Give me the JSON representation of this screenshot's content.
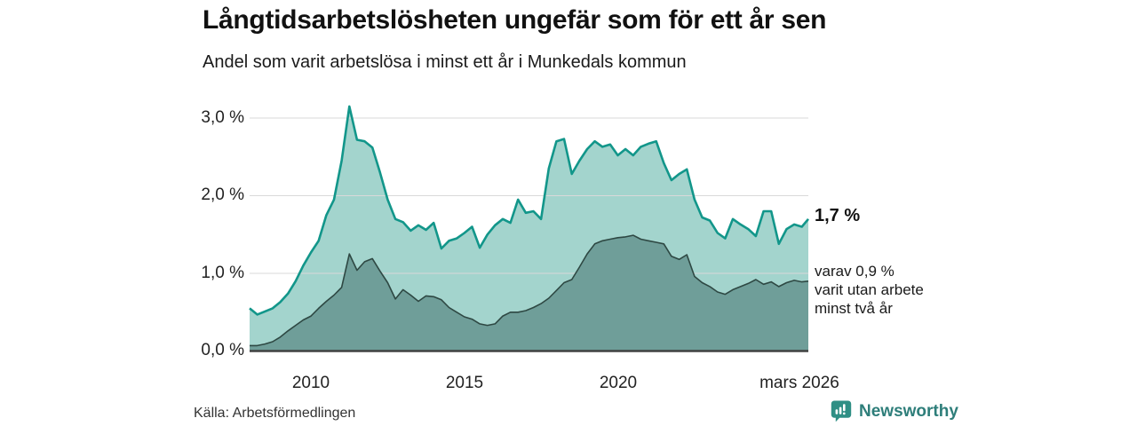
{
  "header": {
    "title": "Långtidsarbetslösheten ungefär som för ett år sen",
    "subtitle": "Andel som varit arbetslösa i minst ett år i Munkedals kommun"
  },
  "annotations": {
    "total_end_label": "1,7 %",
    "subset_end_label_lines": [
      "varav 0,9 %",
      "varit utan arbete",
      "minst två år"
    ]
  },
  "footer": {
    "source": "Källa: Arbetsförmedlingen",
    "brand": "Newsworthy",
    "brand_icon": "newsworthy-bubble-chart-icon"
  },
  "colors": {
    "background": "#ffffff",
    "grid": "#d9d9d9",
    "axis": "#414141",
    "text": "#1a1a1a",
    "tick_text": "#222222",
    "brand_teal": "#2e7e7a",
    "series_total_fill": "#a3d4cd",
    "series_total_stroke": "#12968a",
    "series_subset_fill": "#6f9e99",
    "series_subset_stroke": "#2e4843"
  },
  "chart_data": {
    "type": "area",
    "title": "Långtidsarbetslösheten ungefär som för ett år sen",
    "subtitle": "Andel som varit arbetslösa i minst ett år i Munkedals kommun",
    "x_unit": "decimal_year_monthly_series",
    "x_range": [
      2008.0,
      2026.21
    ],
    "ylim": [
      0,
      3.3
    ],
    "grid": true,
    "y_ticks": [
      0,
      1,
      2,
      3
    ],
    "y_tick_labels": [
      "0,0 %",
      "1,0 %",
      "2,0 %",
      "3,0 %"
    ],
    "x_tick_positions": [
      2010,
      2015,
      2020,
      2026.21
    ],
    "x_tick_labels": [
      "2010",
      "2015",
      "2020",
      "mars 2026"
    ],
    "x": [
      2008.0,
      2008.25,
      2008.5,
      2008.75,
      2009.0,
      2009.25,
      2009.5,
      2009.75,
      2010.0,
      2010.25,
      2010.5,
      2010.75,
      2011.0,
      2011.25,
      2011.5,
      2011.75,
      2012.0,
      2012.25,
      2012.5,
      2012.75,
      2013.0,
      2013.25,
      2013.5,
      2013.75,
      2014.0,
      2014.25,
      2014.5,
      2014.75,
      2015.0,
      2015.25,
      2015.5,
      2015.75,
      2016.0,
      2016.25,
      2016.5,
      2016.75,
      2017.0,
      2017.25,
      2017.5,
      2017.75,
      2018.0,
      2018.25,
      2018.5,
      2018.75,
      2019.0,
      2019.25,
      2019.5,
      2019.75,
      2020.0,
      2020.25,
      2020.5,
      2020.75,
      2021.0,
      2021.25,
      2021.5,
      2021.75,
      2022.0,
      2022.25,
      2022.5,
      2022.75,
      2023.0,
      2023.25,
      2023.5,
      2023.75,
      2024.0,
      2024.25,
      2024.5,
      2024.75,
      2025.0,
      2025.25,
      2025.5,
      2025.75,
      2026.0,
      2026.21
    ],
    "series": [
      {
        "name": "Andel som varit arbetslösa i minst ett år",
        "end_label": "1,7 %",
        "end_value_pct": 1.7,
        "fill": "#a3d4cd",
        "stroke": "#12968a",
        "stroke_width": 2.6,
        "values": [
          0.55,
          0.47,
          0.51,
          0.55,
          0.63,
          0.74,
          0.9,
          1.1,
          1.27,
          1.42,
          1.75,
          1.95,
          2.45,
          3.15,
          2.72,
          2.7,
          2.62,
          2.3,
          1.95,
          1.7,
          1.66,
          1.55,
          1.62,
          1.56,
          1.65,
          1.32,
          1.42,
          1.45,
          1.52,
          1.6,
          1.33,
          1.5,
          1.62,
          1.7,
          1.65,
          1.95,
          1.78,
          1.8,
          1.7,
          2.35,
          2.7,
          2.73,
          2.28,
          2.45,
          2.6,
          2.7,
          2.63,
          2.66,
          2.52,
          2.6,
          2.52,
          2.63,
          2.67,
          2.7,
          2.42,
          2.2,
          2.28,
          2.34,
          1.95,
          1.72,
          1.68,
          1.52,
          1.45,
          1.7,
          1.63,
          1.57,
          1.48,
          1.8,
          1.8,
          1.38,
          1.57,
          1.63,
          1.6,
          1.7
        ]
      },
      {
        "name": "varav varit utan arbete minst två år",
        "end_label": "varav 0,9 % varit utan arbete minst två år",
        "end_value_pct": 0.9,
        "fill": "#6f9e99",
        "stroke": "#2e4843",
        "stroke_width": 1.6,
        "values": [
          0.07,
          0.07,
          0.09,
          0.12,
          0.18,
          0.26,
          0.33,
          0.4,
          0.45,
          0.55,
          0.64,
          0.72,
          0.82,
          1.25,
          1.04,
          1.15,
          1.19,
          1.03,
          0.88,
          0.67,
          0.79,
          0.72,
          0.64,
          0.71,
          0.7,
          0.66,
          0.56,
          0.5,
          0.44,
          0.41,
          0.35,
          0.33,
          0.35,
          0.45,
          0.5,
          0.5,
          0.52,
          0.56,
          0.61,
          0.68,
          0.78,
          0.88,
          0.92,
          1.08,
          1.25,
          1.38,
          1.42,
          1.44,
          1.46,
          1.47,
          1.49,
          1.44,
          1.42,
          1.4,
          1.38,
          1.22,
          1.18,
          1.24,
          0.96,
          0.88,
          0.83,
          0.76,
          0.73,
          0.79,
          0.83,
          0.87,
          0.92,
          0.86,
          0.89,
          0.83,
          0.88,
          0.91,
          0.89,
          0.9
        ]
      }
    ],
    "source": "Källa: Arbetsförmedlingen"
  }
}
